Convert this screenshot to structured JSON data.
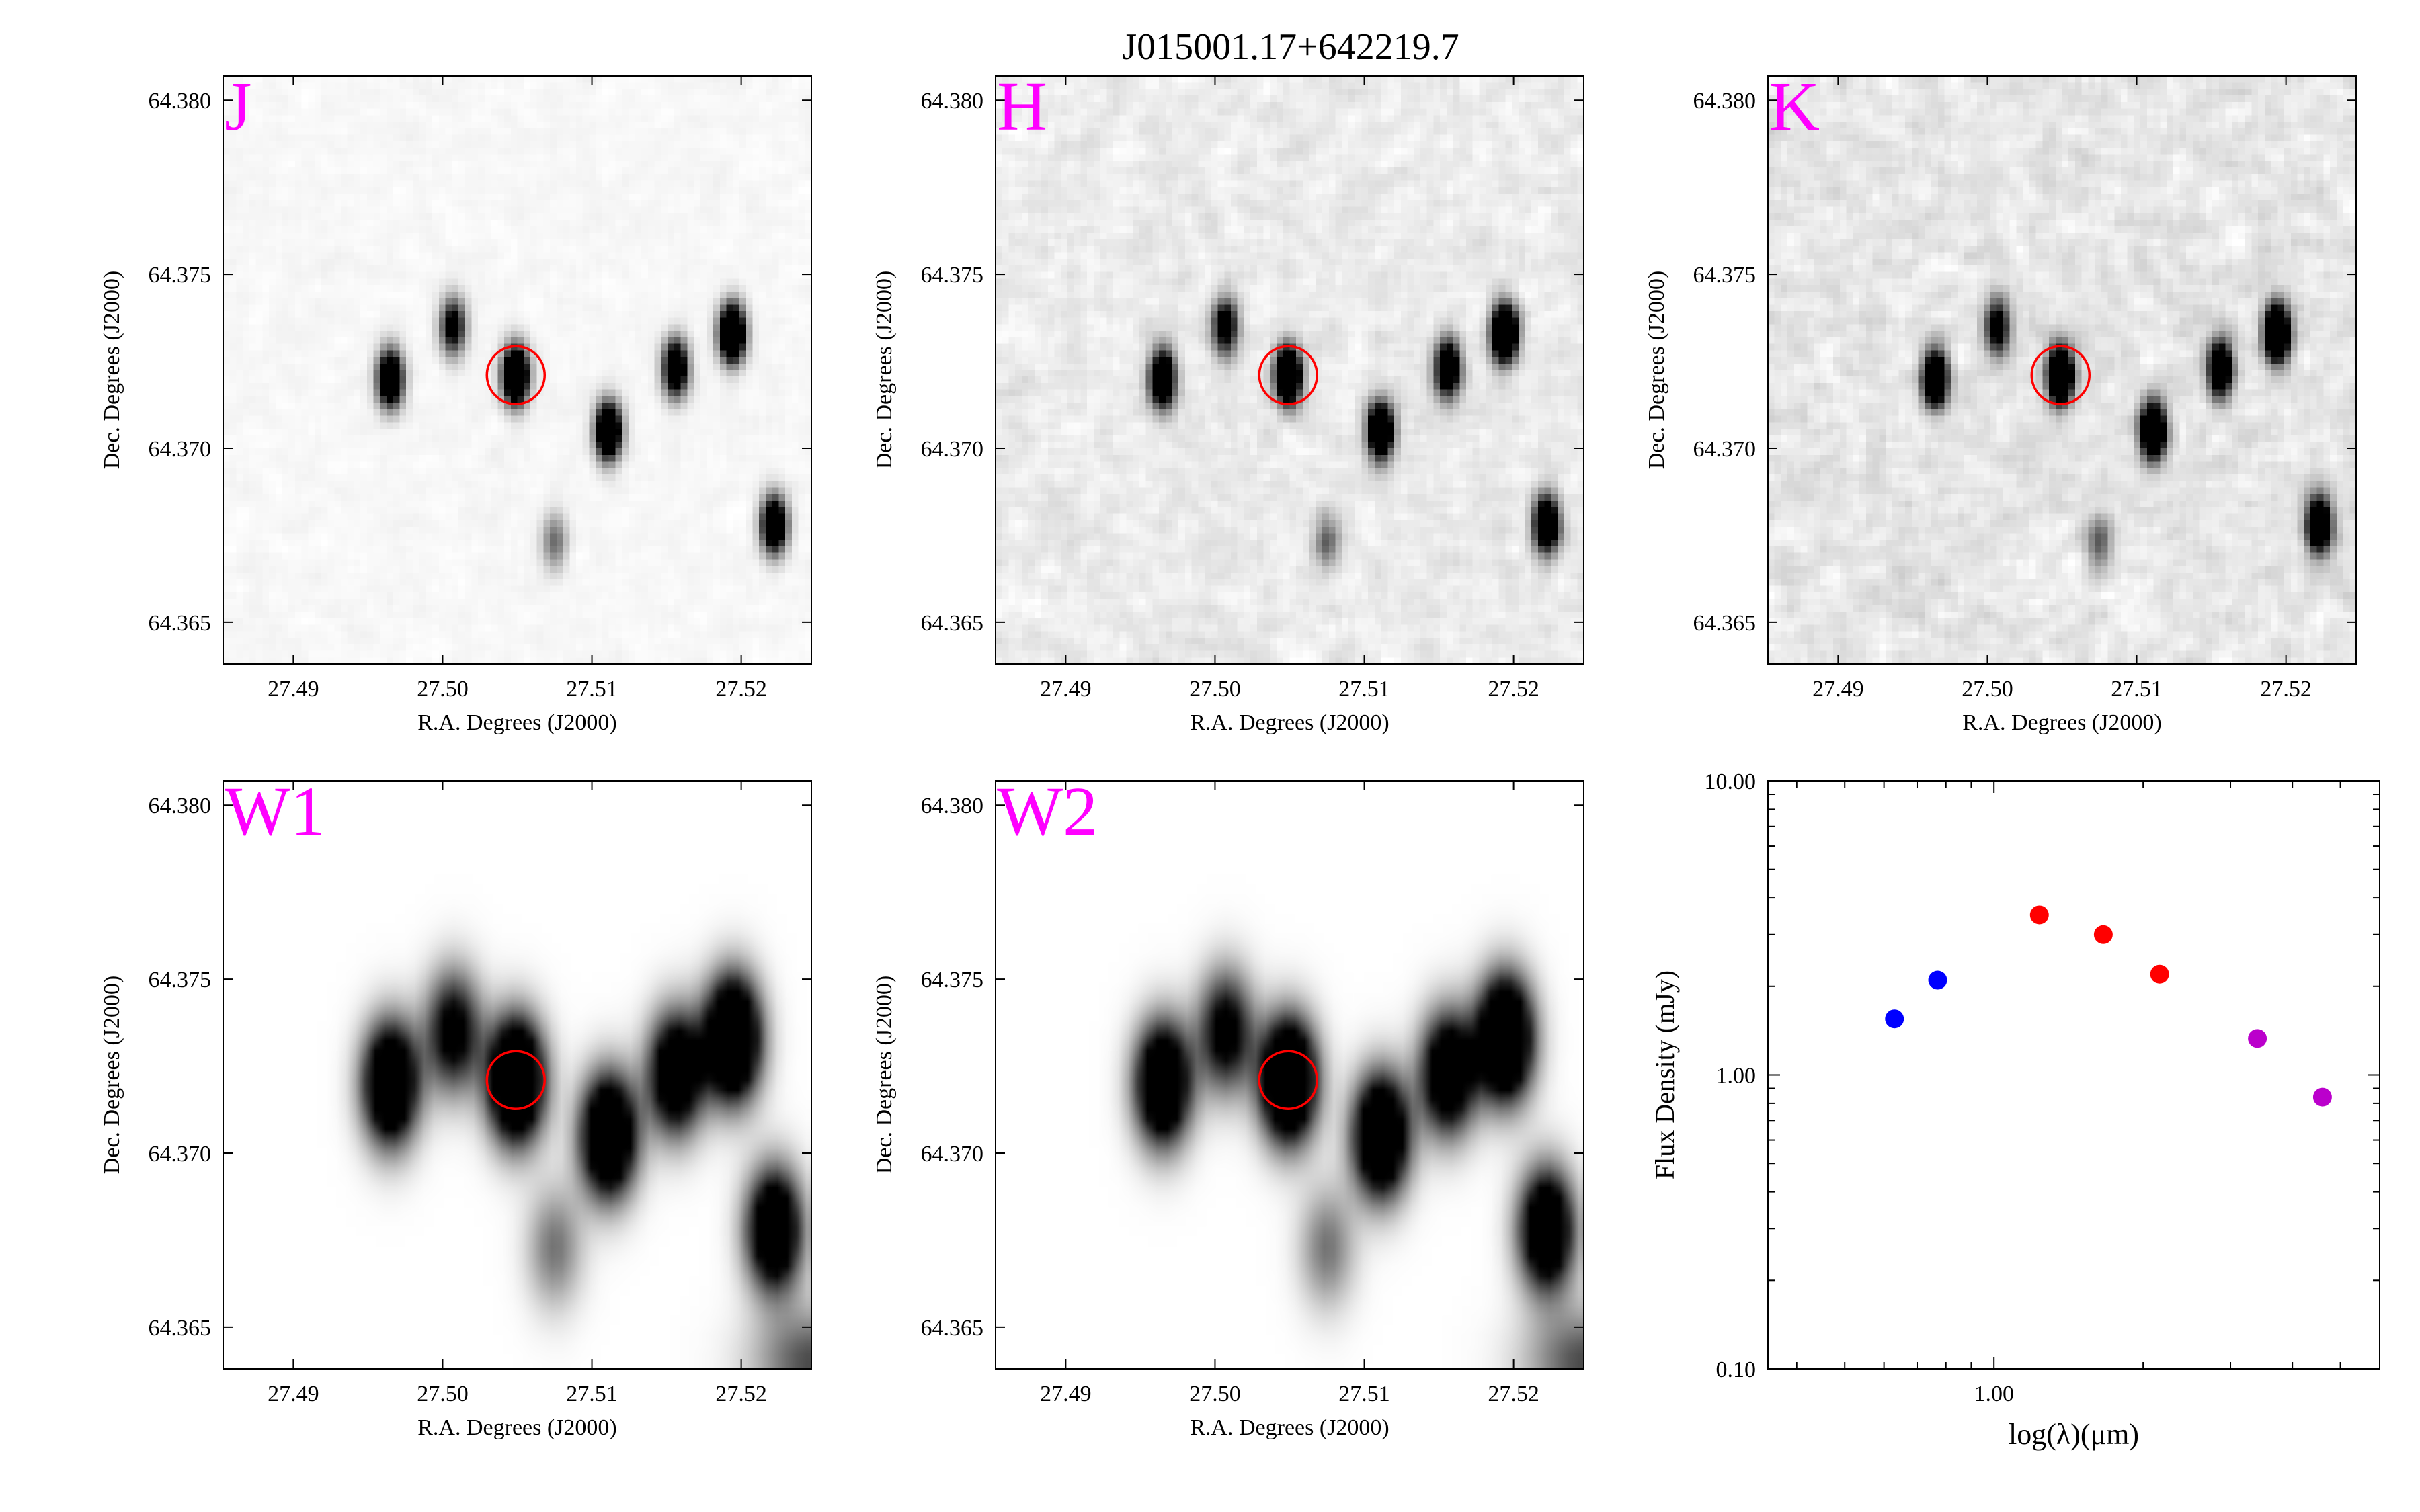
{
  "figure": {
    "title": "J015001.17+642219.7"
  },
  "colors": {
    "band_label": "#ff00ff",
    "aperture_circle": "#ff0000",
    "optical_points": "#0000ff",
    "nir_points": "#ff0000",
    "mir_points": "#bb00cc",
    "background": "#ffffff",
    "axes": "#000000"
  },
  "image_panels": [
    {
      "band": "J",
      "xlabel": "R.A. Degrees (J2000)",
      "ylabel": "Dec. Degrees (J2000)",
      "smooth": 0,
      "noise": 0.05
    },
    {
      "band": "H",
      "xlabel": "R.A. Degrees (J2000)",
      "ylabel": "Dec. Degrees (J2000)",
      "smooth": 0,
      "noise": 0.13
    },
    {
      "band": "K",
      "xlabel": "R.A. Degrees (J2000)",
      "ylabel": "Dec. Degrees (J2000)",
      "smooth": 0,
      "noise": 0.16
    },
    {
      "band": "W1",
      "xlabel": "R.A. Degrees (J2000)",
      "ylabel": "Dec. Degrees (J2000)",
      "smooth": 1,
      "noise": 0.0
    },
    {
      "band": "W2",
      "xlabel": "R.A. Degrees (J2000)",
      "ylabel": "Dec. Degrees (J2000)",
      "smooth": 1,
      "noise": 0.0
    }
  ],
  "image_axes": {
    "ra_range": [
      27.4853,
      27.5247
    ],
    "dec_range": [
      64.3638,
      64.3807
    ],
    "xticks": [
      "27.49",
      "27.50",
      "27.51",
      "27.52"
    ],
    "xtick_values": [
      27.49,
      27.5,
      27.51,
      27.52
    ],
    "yticks": [
      "64.365",
      "64.370",
      "64.375",
      "64.380"
    ],
    "ytick_values": [
      64.365,
      64.37,
      64.375,
      64.38
    ],
    "target_ra": 27.5049,
    "target_dec": 64.3721
  },
  "sources": [
    {
      "ra": 27.5049,
      "dec": 64.3721,
      "flux": 1.0,
      "target": true
    },
    {
      "ra": 27.4965,
      "dec": 64.372,
      "flux": 0.85
    },
    {
      "ra": 27.5007,
      "dec": 64.3735,
      "flux": 0.55
    },
    {
      "ra": 27.5111,
      "dec": 64.3705,
      "flux": 0.9
    },
    {
      "ra": 27.5156,
      "dec": 64.3723,
      "flux": 0.75
    },
    {
      "ra": 27.5194,
      "dec": 64.3733,
      "flux": 1.0
    },
    {
      "ra": 27.5222,
      "dec": 64.3678,
      "flux": 0.8
    },
    {
      "ra": 27.5075,
      "dec": 64.3673,
      "flux": 0.25
    }
  ],
  "chart_data": {
    "type": "scatter",
    "title": "",
    "xlabel": "log(λ)(μm)",
    "ylabel": "Flux Density (mJy)",
    "xscale": "log",
    "yscale": "log",
    "xlim": [
      0.35,
      6.0
    ],
    "ylim": [
      0.1,
      10.0
    ],
    "xticks": [
      "1.00"
    ],
    "xtick_values": [
      1.0
    ],
    "yticks": [
      "0.10",
      "1.00",
      "10.00"
    ],
    "ytick_values": [
      0.1,
      1.0,
      10.0
    ],
    "grid": false,
    "series": [
      {
        "color": "#0000ff",
        "x": [
          0.63,
          0.77
        ],
        "y": [
          1.55,
          2.1
        ]
      },
      {
        "color": "#ff0000",
        "x": [
          1.235,
          1.662,
          2.159
        ],
        "y": [
          3.5,
          3.0,
          2.2
        ]
      },
      {
        "color": "#bb00cc",
        "x": [
          3.4,
          4.6
        ],
        "y": [
          1.33,
          0.84
        ]
      }
    ]
  }
}
